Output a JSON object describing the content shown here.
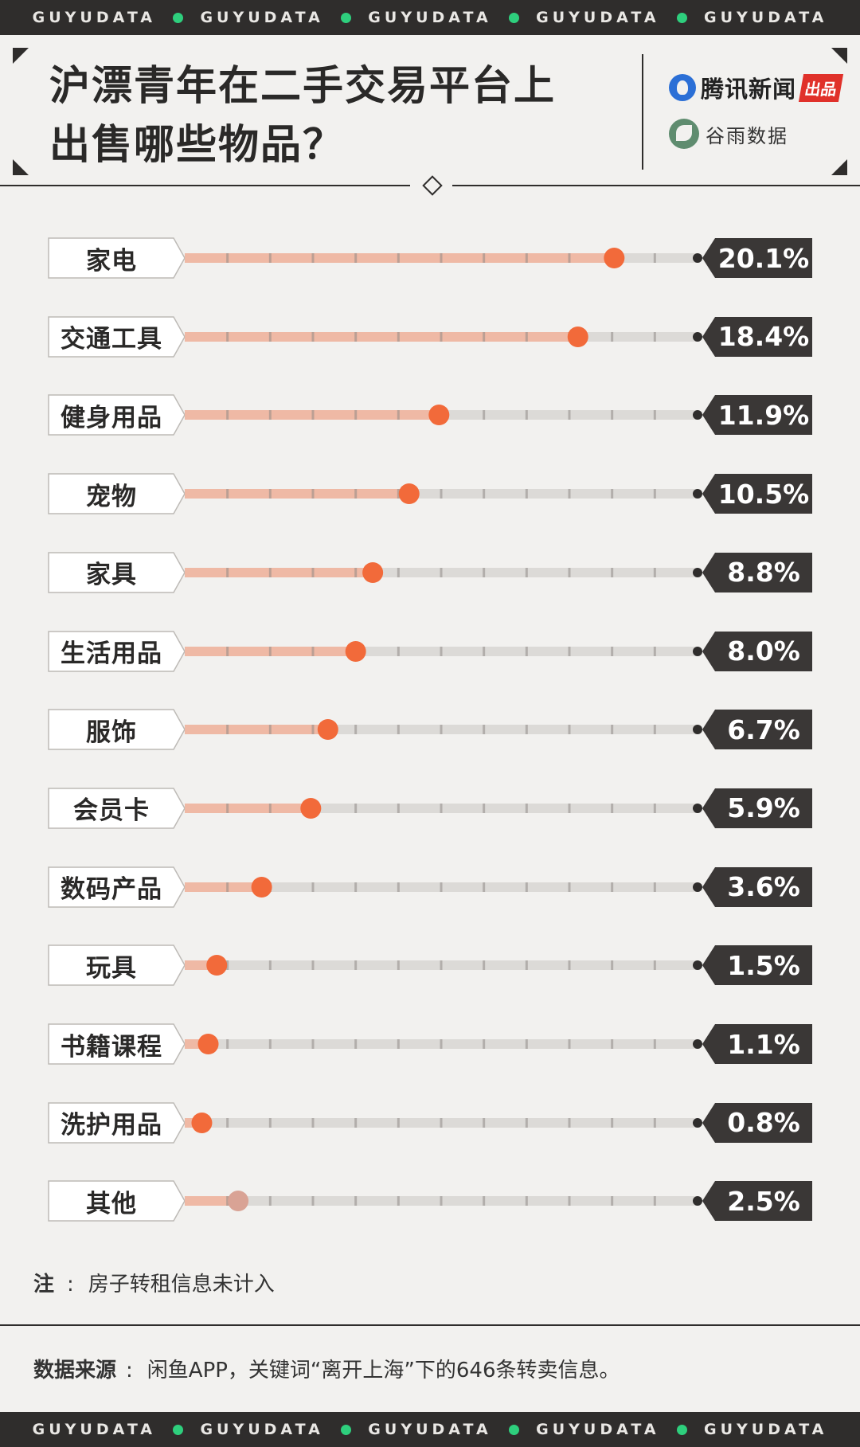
{
  "ticker": {
    "word": "GUYUDATA",
    "dot_color": "#2ecf7d"
  },
  "header": {
    "title_line1": "沪漂青年在二手交易平台上",
    "title_line2": "出售哪些物品？",
    "brand1_name": "腾讯新闻",
    "brand1_tag": "出品",
    "brand2_name": "谷雨数据"
  },
  "chart_data": {
    "type": "bar",
    "categories": [
      "家电",
      "交通工具",
      "健身用品",
      "宠物",
      "家具",
      "生活用品",
      "服饰",
      "会员卡",
      "数码产品",
      "玩具",
      "书籍课程",
      "洗护用品",
      "其他"
    ],
    "values": [
      20.1,
      18.4,
      11.9,
      10.5,
      8.8,
      8.0,
      6.7,
      5.9,
      3.6,
      1.5,
      1.1,
      0.8,
      2.5
    ],
    "value_labels": [
      "20.1%",
      "18.4%",
      "11.9%",
      "10.5%",
      "8.8%",
      "8.0%",
      "6.7%",
      "5.9%",
      "3.6%",
      "1.5%",
      "1.1%",
      "0.8%",
      "2.5%"
    ],
    "unit": "%",
    "xlim": [
      0,
      24
    ],
    "colors": {
      "fill": "#efb9a5",
      "track": "#dcdad7",
      "dot": "#f26a3a",
      "dot_other": "#d9a395",
      "value_bg": "#3a3736"
    }
  },
  "note": {
    "label": "注",
    "text": "房子转租信息未计入"
  },
  "source": {
    "label": "数据来源",
    "text": "闲鱼APP，关键词“离开上海”下的646条转卖信息。"
  }
}
